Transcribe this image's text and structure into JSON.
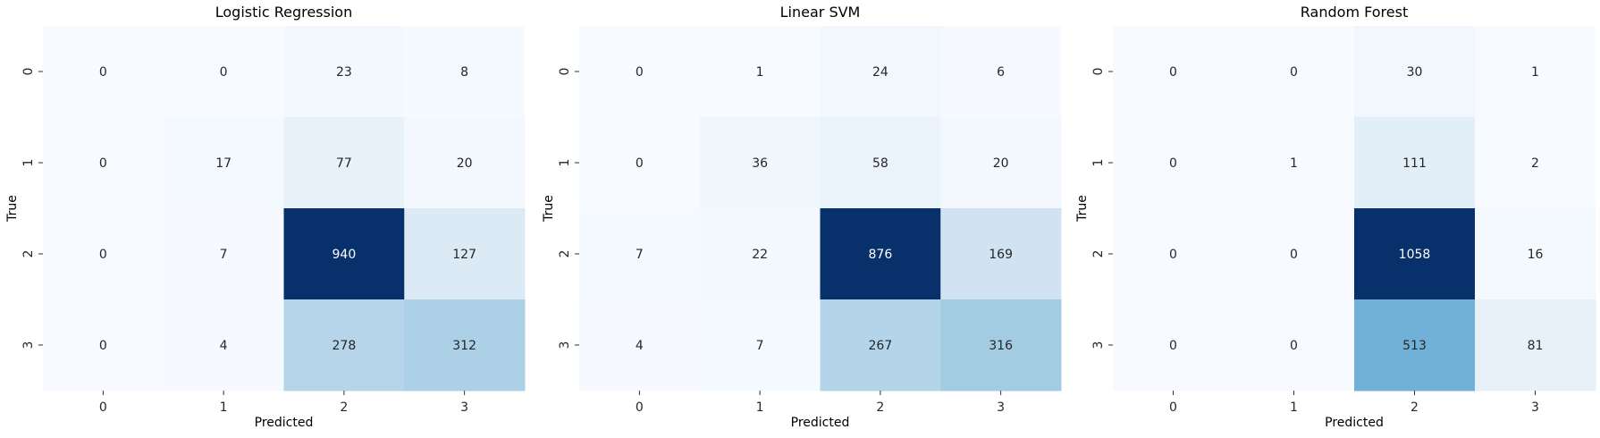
{
  "chart_data": [
    {
      "type": "heatmap",
      "title": "Logistic Regression",
      "xlabel": "Predicted",
      "ylabel": "True",
      "x_categories": [
        "0",
        "1",
        "2",
        "3"
      ],
      "y_categories": [
        "0",
        "1",
        "2",
        "3"
      ],
      "values": [
        [
          0,
          0,
          23,
          8
        ],
        [
          0,
          17,
          77,
          20
        ],
        [
          0,
          7,
          940,
          127
        ],
        [
          0,
          4,
          278,
          312
        ]
      ],
      "colormap": "Blues",
      "colorbar": false,
      "grid": false
    },
    {
      "type": "heatmap",
      "title": "Linear SVM",
      "xlabel": "Predicted",
      "ylabel": "True",
      "x_categories": [
        "0",
        "1",
        "2",
        "3"
      ],
      "y_categories": [
        "0",
        "1",
        "2",
        "3"
      ],
      "values": [
        [
          0,
          1,
          24,
          6
        ],
        [
          0,
          36,
          58,
          20
        ],
        [
          7,
          22,
          876,
          169
        ],
        [
          4,
          7,
          267,
          316
        ]
      ],
      "colormap": "Blues",
      "colorbar": false,
      "grid": false
    },
    {
      "type": "heatmap",
      "title": "Random Forest",
      "xlabel": "Predicted",
      "ylabel": "True",
      "x_categories": [
        "0",
        "1",
        "2",
        "3"
      ],
      "y_categories": [
        "0",
        "1",
        "2",
        "3"
      ],
      "values": [
        [
          0,
          0,
          30,
          1
        ],
        [
          0,
          1,
          111,
          2
        ],
        [
          0,
          0,
          1058,
          16
        ],
        [
          0,
          0,
          513,
          81
        ]
      ],
      "colormap": "Blues",
      "colorbar": false,
      "grid": false
    }
  ]
}
